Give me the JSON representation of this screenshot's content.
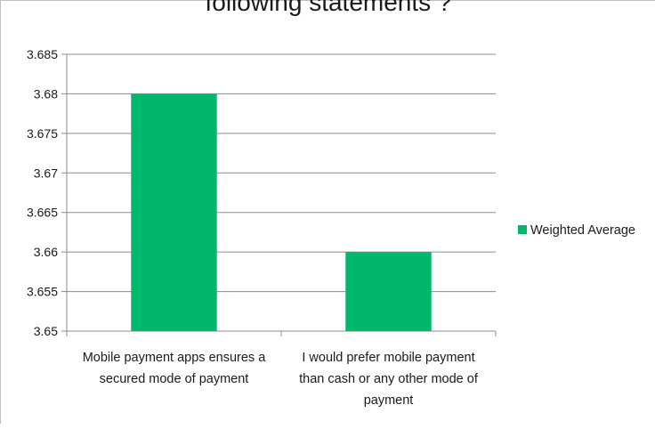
{
  "chart_data": {
    "type": "bar",
    "title": "following statements ?",
    "categories": [
      [
        "Mobile payment apps ensures a",
        "secured mode of payment"
      ],
      [
        "I would prefer mobile payment",
        "than cash or any other mode of",
        "payment"
      ]
    ],
    "series": [
      {
        "name": "Weighted Average",
        "values": [
          3.68,
          3.66
        ],
        "color": "#00b76b"
      }
    ],
    "ylim": [
      3.65,
      3.685
    ],
    "yticks": [
      "3.65",
      "3.655",
      "3.66",
      "3.665",
      "3.67",
      "3.675",
      "3.68",
      "3.685"
    ],
    "grid": true,
    "legend_position": "right"
  }
}
